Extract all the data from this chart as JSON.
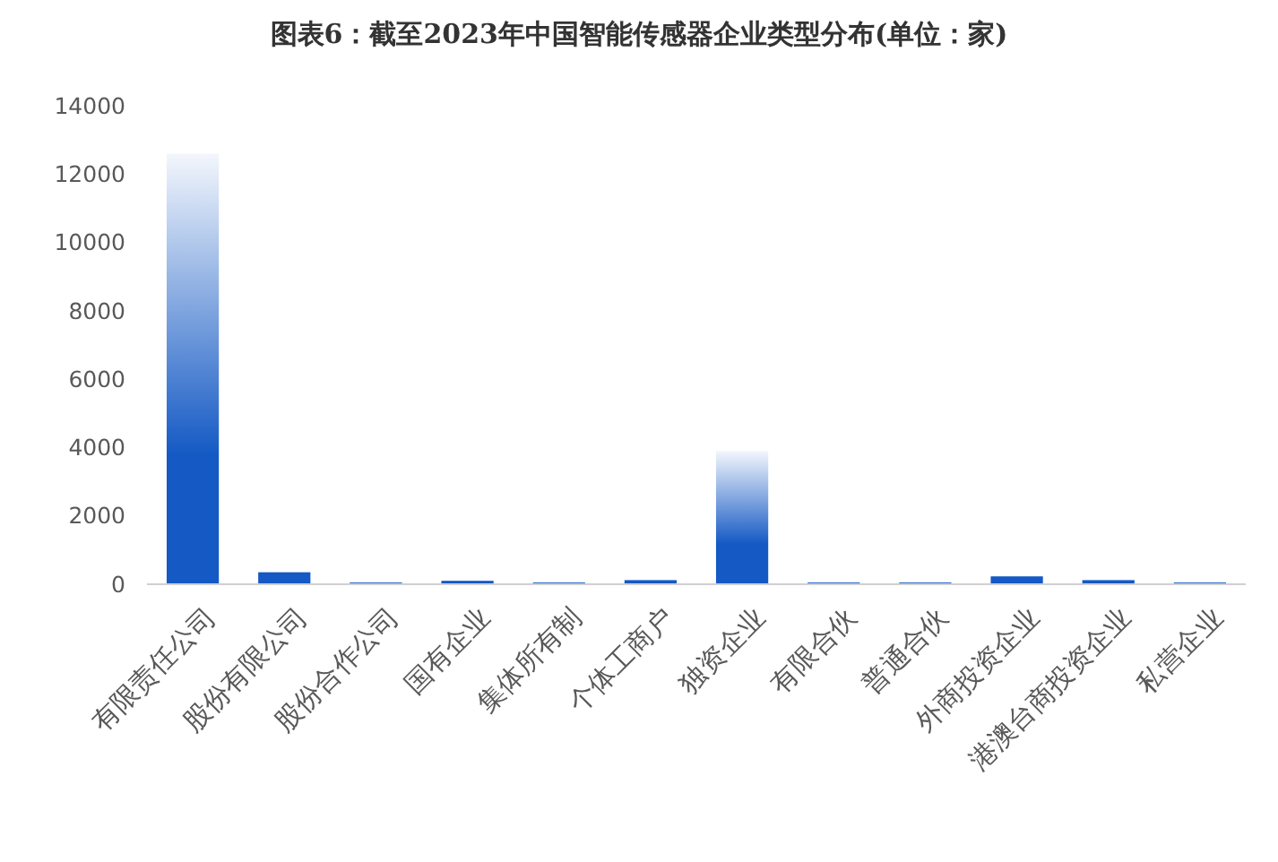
{
  "chart_data": {
    "type": "bar",
    "title": "图表6：截至2023年中国智能传感器企业类型分布(单位：家)",
    "categories": [
      "有限责任公司",
      "股份有限公司",
      "股份合作公司",
      "国有企业",
      "集体所有制",
      "个体工商户",
      "独资企业",
      "有限合伙",
      "普通合伙",
      "外商投资企业",
      "港澳台商投资企业",
      "私营企业"
    ],
    "values": [
      12600,
      350,
      50,
      100,
      50,
      120,
      3900,
      50,
      50,
      230,
      120,
      50
    ],
    "color": "#1459c4",
    "ylim": [
      0,
      14000
    ],
    "yticks": [
      0,
      2000,
      4000,
      6000,
      8000,
      10000,
      12000,
      14000
    ]
  }
}
